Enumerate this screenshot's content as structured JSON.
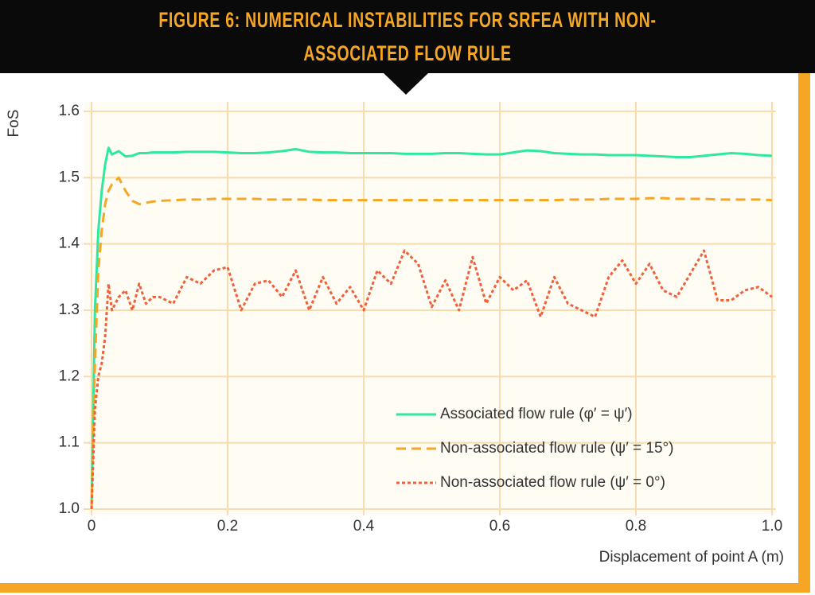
{
  "chart_data": {
    "type": "line",
    "title": "FIGURE 6: NUMERICAL INSTABILITIES FOR SRFEA WITH NON-ASSOCIATED FLOW RULE",
    "xlabel": "Displacement of point A (m)",
    "ylabel": "FoS",
    "x": [
      0,
      0.005,
      0.01,
      0.015,
      0.02,
      0.025,
      0.03,
      0.04,
      0.05,
      0.06,
      0.07,
      0.08,
      0.09,
      0.1,
      0.12,
      0.14,
      0.16,
      0.18,
      0.2,
      0.22,
      0.24,
      0.26,
      0.28,
      0.3,
      0.32,
      0.34,
      0.36,
      0.38,
      0.4,
      0.42,
      0.44,
      0.46,
      0.48,
      0.5,
      0.52,
      0.54,
      0.56,
      0.58,
      0.6,
      0.62,
      0.64,
      0.66,
      0.68,
      0.7,
      0.72,
      0.74,
      0.76,
      0.78,
      0.8,
      0.82,
      0.84,
      0.86,
      0.88,
      0.9,
      0.92,
      0.94,
      0.96,
      0.98,
      1.0
    ],
    "series": [
      {
        "name": "Associated flow rule (φ′ = ψ′)",
        "color": "#2ee8a0",
        "style": "solid",
        "values": [
          1.0,
          1.3,
          1.42,
          1.48,
          1.52,
          1.545,
          1.535,
          1.54,
          1.532,
          1.533,
          1.537,
          1.537,
          1.538,
          1.538,
          1.538,
          1.539,
          1.539,
          1.539,
          1.538,
          1.537,
          1.537,
          1.538,
          1.54,
          1.543,
          1.539,
          1.538,
          1.538,
          1.537,
          1.537,
          1.537,
          1.537,
          1.536,
          1.536,
          1.536,
          1.537,
          1.537,
          1.536,
          1.535,
          1.535,
          1.538,
          1.541,
          1.54,
          1.537,
          1.536,
          1.535,
          1.535,
          1.534,
          1.534,
          1.534,
          1.533,
          1.532,
          1.531,
          1.531,
          1.533,
          1.535,
          1.537,
          1.536,
          1.534,
          1.533
        ]
      },
      {
        "name": "Non-associated flow rule (ψ′ = 15°)",
        "color": "#f5a623",
        "style": "dashed",
        "values": [
          1.0,
          1.22,
          1.36,
          1.42,
          1.46,
          1.48,
          1.49,
          1.5,
          1.48,
          1.465,
          1.46,
          1.462,
          1.464,
          1.465,
          1.466,
          1.467,
          1.467,
          1.468,
          1.468,
          1.468,
          1.468,
          1.467,
          1.467,
          1.467,
          1.467,
          1.466,
          1.466,
          1.466,
          1.466,
          1.466,
          1.466,
          1.466,
          1.466,
          1.466,
          1.466,
          1.466,
          1.466,
          1.466,
          1.466,
          1.466,
          1.466,
          1.466,
          1.466,
          1.467,
          1.467,
          1.467,
          1.468,
          1.468,
          1.468,
          1.469,
          1.469,
          1.468,
          1.468,
          1.468,
          1.467,
          1.467,
          1.467,
          1.467,
          1.466
        ]
      },
      {
        "name": "Non-associated flow rule (ψ′ = 0°)",
        "color": "#f0603a",
        "style": "dotted",
        "values": [
          1.0,
          1.15,
          1.2,
          1.22,
          1.26,
          1.34,
          1.3,
          1.32,
          1.33,
          1.3,
          1.34,
          1.31,
          1.32,
          1.32,
          1.31,
          1.35,
          1.34,
          1.36,
          1.365,
          1.3,
          1.34,
          1.345,
          1.32,
          1.36,
          1.3,
          1.35,
          1.31,
          1.335,
          1.3,
          1.36,
          1.34,
          1.39,
          1.37,
          1.305,
          1.345,
          1.3,
          1.38,
          1.31,
          1.35,
          1.33,
          1.345,
          1.29,
          1.35,
          1.31,
          1.3,
          1.29,
          1.35,
          1.375,
          1.34,
          1.37,
          1.33,
          1.32,
          1.355,
          1.39,
          1.315,
          1.315,
          1.33,
          1.335,
          1.32
        ]
      }
    ],
    "xlim": [
      0,
      1
    ],
    "ylim": [
      1,
      1.6
    ],
    "xticks": [
      0,
      0.2,
      0.4,
      0.6,
      0.8,
      {
        "value": 1,
        "label": "1.0"
      }
    ],
    "yticks": [
      {
        "value": 1,
        "label": "1.0"
      },
      1.1,
      1.2,
      1.3,
      1.4,
      1.5,
      1.6
    ],
    "grid": true,
    "legend": "lower right"
  }
}
